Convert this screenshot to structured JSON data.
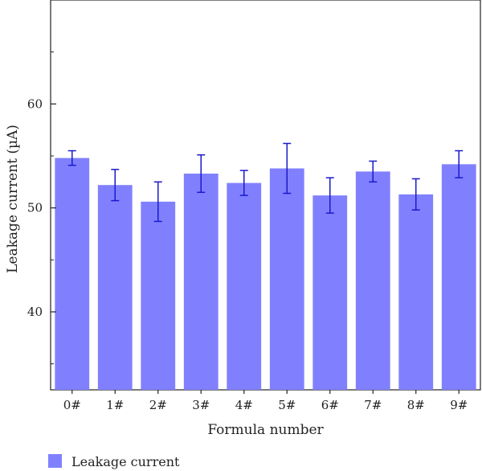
{
  "chart_data": {
    "type": "bar",
    "categories": [
      "0#",
      "1#",
      "2#",
      "3#",
      "4#",
      "5#",
      "6#",
      "7#",
      "8#",
      "9#"
    ],
    "series": [
      {
        "name": "Leakage current",
        "values": [
          54.8,
          52.2,
          50.6,
          53.3,
          52.4,
          53.8,
          51.2,
          53.5,
          51.3,
          54.2
        ],
        "errors": [
          0.7,
          1.5,
          1.9,
          1.8,
          1.2,
          2.4,
          1.7,
          1.0,
          1.5,
          1.3
        ],
        "color": "#8080ff",
        "error_color": "#1a1acc"
      }
    ],
    "xlabel": "Formula number",
    "ylabel": "Leakage current (µA)",
    "ylim": [
      32.5,
      70
    ],
    "yticks": [
      40,
      50,
      60
    ],
    "grid": false,
    "legend": "bottom-left"
  }
}
